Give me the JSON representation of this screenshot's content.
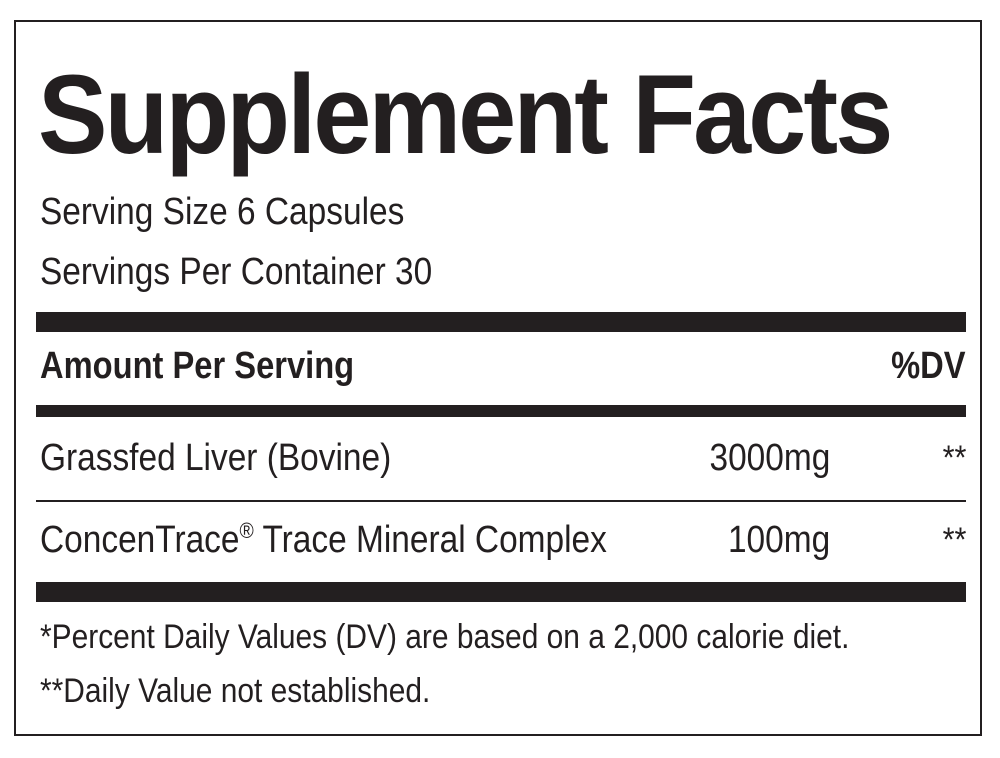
{
  "label": {
    "title": "Supplement Facts",
    "serving_size": "Serving Size 6 Capsules",
    "servings_per_container": "Servings Per Container 30",
    "header": {
      "amount_per_serving": "Amount Per Serving",
      "dv": "%DV"
    },
    "ingredients": [
      {
        "name": "Grassfed Liver (Bovine)",
        "mark": "",
        "amount": "3000mg",
        "dv": "**"
      },
      {
        "name": "ConcenTrace",
        "mark": "®",
        "name_suffix": " Trace Mineral Complex",
        "amount": "100mg",
        "dv": "**"
      }
    ],
    "footnotes": [
      "*Percent Daily Values (DV) are based on a 2,000 calorie diet.",
      "**Daily Value not established."
    ]
  }
}
